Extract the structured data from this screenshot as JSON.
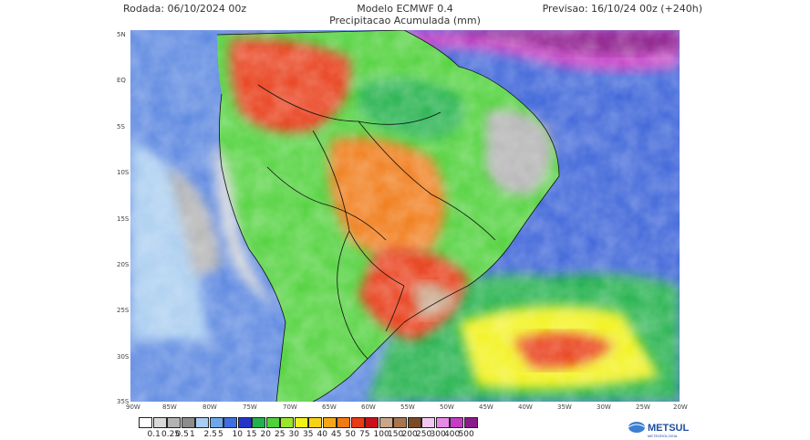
{
  "header": {
    "run": "Rodada: 06/10/2024 00z",
    "model": "Modelo ECMWF 0.4",
    "subtitle": "Precipitacao Acumulada (mm)",
    "forecast": "Previsao: 16/10/24 00z (+240h)"
  },
  "lat_labels": [
    "5N",
    "EQ",
    "5S",
    "10S",
    "15S",
    "20S",
    "25S",
    "30S",
    "35S"
  ],
  "lon_labels": [
    "90W",
    "85W",
    "80W",
    "75W",
    "70W",
    "65W",
    "60W",
    "55W",
    "50W",
    "45W",
    "40W",
    "35W",
    "30W",
    "25W",
    "20W"
  ],
  "legend": {
    "labels": [
      "0.1",
      "0.25",
      "0.5",
      "1",
      "2.5",
      "5",
      "10",
      "15",
      "20",
      "25",
      "30",
      "35",
      "40",
      "45",
      "50",
      "75",
      "100",
      "150",
      "200",
      "250",
      "300",
      "400",
      "500"
    ],
    "colors": [
      "#ffffff",
      "#d9d9d9",
      "#b3b3b3",
      "#8c8c8c",
      "#a9cdf0",
      "#6fa8e8",
      "#3e6fe0",
      "#2533c8",
      "#22b14c",
      "#4fd13a",
      "#9ae62c",
      "#f2f21a",
      "#f7d218",
      "#f5a716",
      "#f07a14",
      "#e83a14",
      "#c8101a",
      "#c9a78a",
      "#a87550",
      "#7a4a28",
      "#f2c8f0",
      "#e68ae6",
      "#c53cc5",
      "#8b1a8b"
    ],
    "ocean_pacific": "#4a7fe0",
    "ocean_atlantic": "#3560d8"
  },
  "logo": {
    "text": "METSUL",
    "subtext": "METEOROLOGIA",
    "color": "#1e4fa0"
  }
}
